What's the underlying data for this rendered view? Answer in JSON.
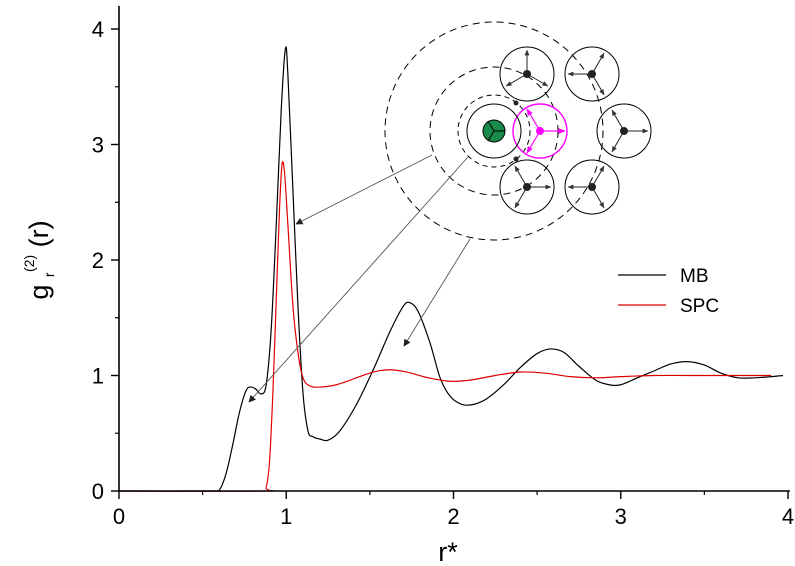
{
  "chart_data": {
    "type": "line",
    "xlabel": "r*",
    "ylabel": {
      "base": "g",
      "subscript": "r",
      "superscript": "(2)",
      "suffix": "(r)"
    },
    "xlim": [
      0,
      4
    ],
    "ylim": [
      0,
      4.2
    ],
    "x_ticks": [
      "0",
      "1",
      "2",
      "3",
      "4"
    ],
    "y_ticks": [
      "0",
      "1",
      "2",
      "3",
      "4"
    ],
    "grid": false,
    "legend_position": "right",
    "series": [
      {
        "name": "MB",
        "color": "#000000",
        "points": [
          [
            0,
            0
          ],
          [
            0.55,
            0
          ],
          [
            0.6,
            0.01
          ],
          [
            0.64,
            0.15
          ],
          [
            0.68,
            0.4
          ],
          [
            0.72,
            0.68
          ],
          [
            0.76,
            0.87
          ],
          [
            0.79,
            0.9
          ],
          [
            0.82,
            0.88
          ],
          [
            0.85,
            0.84
          ],
          [
            0.88,
            0.92
          ],
          [
            0.91,
            1.4
          ],
          [
            0.94,
            2.3
          ],
          [
            0.97,
            3.3
          ],
          [
            0.995,
            3.83
          ],
          [
            1.01,
            3.6
          ],
          [
            1.04,
            2.6
          ],
          [
            1.07,
            1.6
          ],
          [
            1.1,
            0.85
          ],
          [
            1.13,
            0.52
          ],
          [
            1.16,
            0.47
          ],
          [
            1.2,
            0.45
          ],
          [
            1.25,
            0.44
          ],
          [
            1.32,
            0.52
          ],
          [
            1.42,
            0.75
          ],
          [
            1.52,
            1.05
          ],
          [
            1.62,
            1.38
          ],
          [
            1.7,
            1.6
          ],
          [
            1.74,
            1.63
          ],
          [
            1.79,
            1.55
          ],
          [
            1.86,
            1.28
          ],
          [
            1.92,
            0.98
          ],
          [
            1.98,
            0.82
          ],
          [
            2.05,
            0.75
          ],
          [
            2.12,
            0.75
          ],
          [
            2.2,
            0.8
          ],
          [
            2.3,
            0.92
          ],
          [
            2.4,
            1.07
          ],
          [
            2.5,
            1.19
          ],
          [
            2.58,
            1.23
          ],
          [
            2.66,
            1.2
          ],
          [
            2.75,
            1.08
          ],
          [
            2.85,
            0.96
          ],
          [
            2.93,
            0.92
          ],
          [
            3.0,
            0.92
          ],
          [
            3.1,
            0.98
          ],
          [
            3.2,
            1.04
          ],
          [
            3.3,
            1.1
          ],
          [
            3.4,
            1.12
          ],
          [
            3.5,
            1.09
          ],
          [
            3.6,
            1.02
          ],
          [
            3.7,
            0.98
          ],
          [
            3.8,
            0.98
          ],
          [
            3.9,
            0.99
          ],
          [
            3.97,
            1.0
          ]
        ]
      },
      {
        "name": "SPC",
        "color": "#e00000",
        "points": [
          [
            0,
            0
          ],
          [
            0.86,
            0
          ],
          [
            0.88,
            0.03
          ],
          [
            0.9,
            0.25
          ],
          [
            0.92,
            0.85
          ],
          [
            0.94,
            1.65
          ],
          [
            0.96,
            2.45
          ],
          [
            0.975,
            2.83
          ],
          [
            0.99,
            2.75
          ],
          [
            1.01,
            2.3
          ],
          [
            1.04,
            1.6
          ],
          [
            1.07,
            1.2
          ],
          [
            1.1,
            0.98
          ],
          [
            1.14,
            0.91
          ],
          [
            1.2,
            0.9
          ],
          [
            1.3,
            0.92
          ],
          [
            1.42,
            0.98
          ],
          [
            1.52,
            1.03
          ],
          [
            1.62,
            1.05
          ],
          [
            1.72,
            1.03
          ],
          [
            1.85,
            0.98
          ],
          [
            1.98,
            0.95
          ],
          [
            2.1,
            0.96
          ],
          [
            2.25,
            1.0
          ],
          [
            2.4,
            1.03
          ],
          [
            2.55,
            1.02
          ],
          [
            2.7,
            0.99
          ],
          [
            2.85,
            0.98
          ],
          [
            3.0,
            0.99
          ],
          [
            3.2,
            1.0
          ],
          [
            3.4,
            1.0
          ],
          [
            3.6,
            1.0
          ],
          [
            3.8,
            1.0
          ],
          [
            3.9,
            1.0
          ]
        ]
      }
    ]
  },
  "inset": {
    "center_particle_color": "#1a8a4a",
    "highlight_color": "#ff00ff"
  }
}
